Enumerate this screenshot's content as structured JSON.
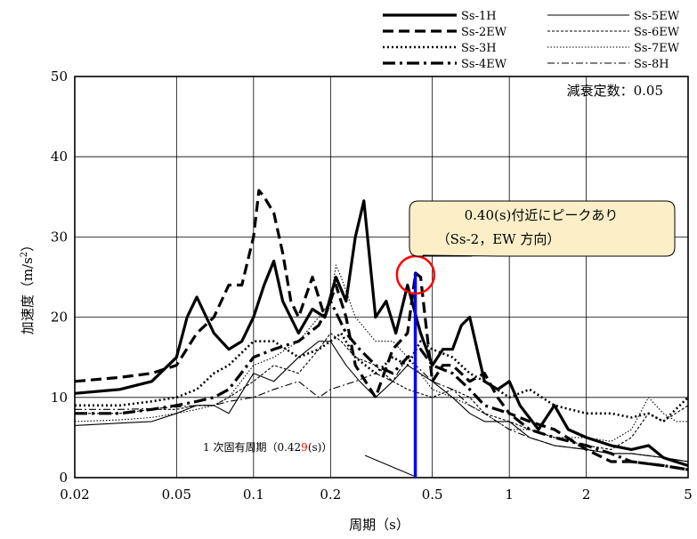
{
  "chart_data": {
    "type": "line",
    "xlabel": "周期（s）",
    "ylabel": "加速度（m/s²）",
    "ylabel_main": "加速度（m/s",
    "ylabel_sup": "2",
    "ylabel_end": "）",
    "x_scale": "log",
    "xlim": [
      0.02,
      5
    ],
    "ylim": [
      0,
      50
    ],
    "grid": true,
    "legend_placement": "top-right",
    "x_ticks": [
      {
        "value": 0.02,
        "label": "0.02"
      },
      {
        "value": 0.05,
        "label": "0.05"
      },
      {
        "value": 0.1,
        "label": "0.1"
      },
      {
        "value": 0.2,
        "label": "0.2"
      },
      {
        "value": 0.5,
        "label": "0.5"
      },
      {
        "value": 1,
        "label": "1"
      },
      {
        "value": 2,
        "label": "2"
      },
      {
        "value": 5,
        "label": "5"
      }
    ],
    "y_ticks": [
      {
        "value": 0,
        "label": "0"
      },
      {
        "value": 10,
        "label": "10"
      },
      {
        "value": 20,
        "label": "20"
      },
      {
        "value": 30,
        "label": "30"
      },
      {
        "value": 40,
        "label": "40"
      },
      {
        "value": 50,
        "label": "50"
      }
    ],
    "damping_label": "減衰定数：0.05",
    "series": [
      {
        "name": "Ss-1H",
        "style": "thick-solid",
        "x": [
          0.02,
          0.03,
          0.04,
          0.05,
          0.055,
          0.06,
          0.07,
          0.08,
          0.09,
          0.1,
          0.11,
          0.12,
          0.13,
          0.15,
          0.17,
          0.19,
          0.21,
          0.23,
          0.25,
          0.27,
          0.3,
          0.33,
          0.36,
          0.4,
          0.45,
          0.5,
          0.55,
          0.6,
          0.65,
          0.7,
          0.8,
          0.9,
          1.0,
          1.1,
          1.3,
          1.5,
          1.7,
          2.0,
          2.5,
          3.0,
          3.5,
          4.0,
          5.0
        ],
        "y": [
          10.5,
          11,
          12,
          15,
          20,
          22.5,
          18,
          16,
          17,
          20,
          24,
          27,
          22,
          18,
          21,
          20,
          25,
          22,
          30,
          34.5,
          20,
          22,
          18,
          24,
          18,
          14,
          16,
          16,
          19,
          20,
          12,
          11,
          12,
          9,
          6,
          9,
          6,
          5,
          4,
          3.5,
          4,
          2.5,
          1.5
        ]
      },
      {
        "name": "Ss-2EW",
        "style": "thick-dash",
        "x": [
          0.02,
          0.03,
          0.04,
          0.05,
          0.06,
          0.07,
          0.08,
          0.09,
          0.1,
          0.105,
          0.11,
          0.12,
          0.13,
          0.14,
          0.15,
          0.17,
          0.19,
          0.21,
          0.23,
          0.25,
          0.3,
          0.35,
          0.4,
          0.43,
          0.45,
          0.5,
          0.55,
          0.6,
          0.7,
          0.8,
          0.9,
          1.0,
          1.2,
          1.5,
          2.0,
          2.5,
          3.0,
          4.0,
          5.0
        ],
        "y": [
          12,
          12.5,
          13,
          14,
          18,
          20,
          24,
          24,
          30,
          35.8,
          35,
          33,
          28,
          22,
          20,
          25,
          20,
          24,
          20,
          14,
          10,
          16,
          18,
          25.5,
          25,
          12,
          14,
          14,
          12,
          13,
          10,
          8,
          7,
          6,
          3.5,
          2,
          2,
          1.5,
          1
        ]
      },
      {
        "name": "Ss-3H",
        "style": "dotted",
        "x": [
          0.02,
          0.03,
          0.04,
          0.05,
          0.06,
          0.07,
          0.08,
          0.1,
          0.12,
          0.15,
          0.18,
          0.2,
          0.22,
          0.25,
          0.3,
          0.35,
          0.4,
          0.45,
          0.5,
          0.6,
          0.7,
          0.8,
          1.0,
          1.2,
          1.5,
          2.0,
          2.5,
          3.0,
          3.5,
          4.0,
          5.0
        ],
        "y": [
          9,
          9,
          9.5,
          10,
          11,
          13,
          14,
          17,
          17,
          15,
          16,
          17,
          18,
          15,
          13,
          15,
          14,
          17,
          16,
          15,
          13,
          12,
          10,
          11,
          9,
          8,
          8,
          7.5,
          8,
          7,
          10
        ]
      },
      {
        "name": "Ss-4EW",
        "style": "thick-dashdot",
        "x": [
          0.02,
          0.03,
          0.04,
          0.05,
          0.06,
          0.07,
          0.08,
          0.1,
          0.12,
          0.15,
          0.18,
          0.2,
          0.23,
          0.26,
          0.3,
          0.35,
          0.4,
          0.45,
          0.5,
          0.6,
          0.7,
          0.8,
          1.0,
          1.2,
          1.5,
          2.0,
          2.5,
          3.0,
          4.0,
          5.0
        ],
        "y": [
          8,
          8,
          8.5,
          9,
          9.5,
          10,
          11,
          15,
          16,
          17,
          19,
          22,
          18,
          16,
          14,
          13,
          15,
          16,
          14,
          13,
          11,
          9,
          8,
          6,
          5,
          4,
          3,
          2,
          1.5,
          1
        ]
      },
      {
        "name": "Ss-5EW",
        "style": "thin-solid",
        "x": [
          0.02,
          0.03,
          0.04,
          0.05,
          0.06,
          0.07,
          0.08,
          0.1,
          0.12,
          0.15,
          0.18,
          0.2,
          0.23,
          0.26,
          0.3,
          0.35,
          0.4,
          0.5,
          0.6,
          0.7,
          0.8,
          1.0,
          1.2,
          1.5,
          2.0,
          2.5,
          3.0,
          4.0,
          5.0
        ],
        "y": [
          6.5,
          6.8,
          7,
          8,
          9,
          9,
          8,
          13,
          12,
          15,
          17,
          17,
          14,
          12,
          10,
          12,
          14,
          12,
          10,
          8,
          7,
          7,
          5,
          4,
          3.5,
          3,
          3,
          2.5,
          2
        ]
      },
      {
        "name": "Ss-6EW",
        "style": "thin-dash",
        "x": [
          0.02,
          0.03,
          0.04,
          0.05,
          0.06,
          0.07,
          0.08,
          0.1,
          0.12,
          0.15,
          0.18,
          0.2,
          0.22,
          0.25,
          0.3,
          0.35,
          0.4,
          0.5,
          0.6,
          0.7,
          0.8,
          1.0,
          1.2,
          1.5,
          2.0,
          2.5,
          3.0,
          3.5,
          4.0,
          5.0
        ],
        "y": [
          8,
          8,
          8.5,
          8.5,
          9,
          9,
          10,
          12,
          14,
          13,
          16,
          18,
          17,
          15,
          14,
          12,
          11,
          10,
          11,
          10,
          8,
          7,
          6,
          5,
          4,
          3.5,
          5,
          8,
          7,
          9
        ]
      },
      {
        "name": "Ss-7EW",
        "style": "thin-dotted",
        "x": [
          0.02,
          0.03,
          0.04,
          0.05,
          0.06,
          0.07,
          0.08,
          0.1,
          0.12,
          0.15,
          0.18,
          0.2,
          0.21,
          0.22,
          0.25,
          0.3,
          0.35,
          0.4,
          0.5,
          0.6,
          0.7,
          0.8,
          1.0,
          1.2,
          1.5,
          2.0,
          2.5,
          3.0,
          3.5,
          4.0,
          4.5,
          5.0
        ],
        "y": [
          7,
          7.2,
          7.5,
          8,
          8.5,
          9,
          10,
          14,
          15,
          17,
          20,
          22,
          26.5,
          25,
          20,
          17,
          17,
          15,
          11,
          10,
          9,
          8,
          6,
          6,
          5,
          5,
          4.5,
          6,
          10,
          8,
          7,
          7
        ]
      },
      {
        "name": "Ss-8H",
        "style": "thin-dashdot",
        "x": [
          0.02,
          0.03,
          0.04,
          0.05,
          0.06,
          0.07,
          0.08,
          0.1,
          0.12,
          0.15,
          0.18,
          0.2,
          0.25,
          0.3,
          0.35,
          0.4,
          0.5,
          0.6,
          0.7,
          0.8,
          1.0,
          1.2,
          1.5,
          2.0,
          2.5,
          3.0,
          4.0,
          5.0
        ],
        "y": [
          8.5,
          8.5,
          8.6,
          8.8,
          9,
          9,
          9.5,
          10,
          11,
          12,
          10,
          11,
          12,
          13,
          12,
          15,
          12,
          11,
          9,
          8,
          6,
          5,
          4,
          3.5,
          3,
          3,
          2.5,
          2
        ]
      }
    ],
    "peak_callout": {
      "line1": "0.40(s)付近にピークあり",
      "line2": "（Ss-2，EW 方向）",
      "peak_x": 0.43,
      "peak_y": 25.5
    },
    "period_label": {
      "prefix": "1 次固有周期（0.42",
      "highlight": "9",
      "suffix": "(s)）",
      "x": 0.429
    },
    "colors": {
      "series": "#000000",
      "grid": "#000000",
      "marker_line": "#0000ff",
      "circle": "#ff0000",
      "callout_fill": "#fcefc8",
      "highlight_text": "#ff0000"
    }
  }
}
